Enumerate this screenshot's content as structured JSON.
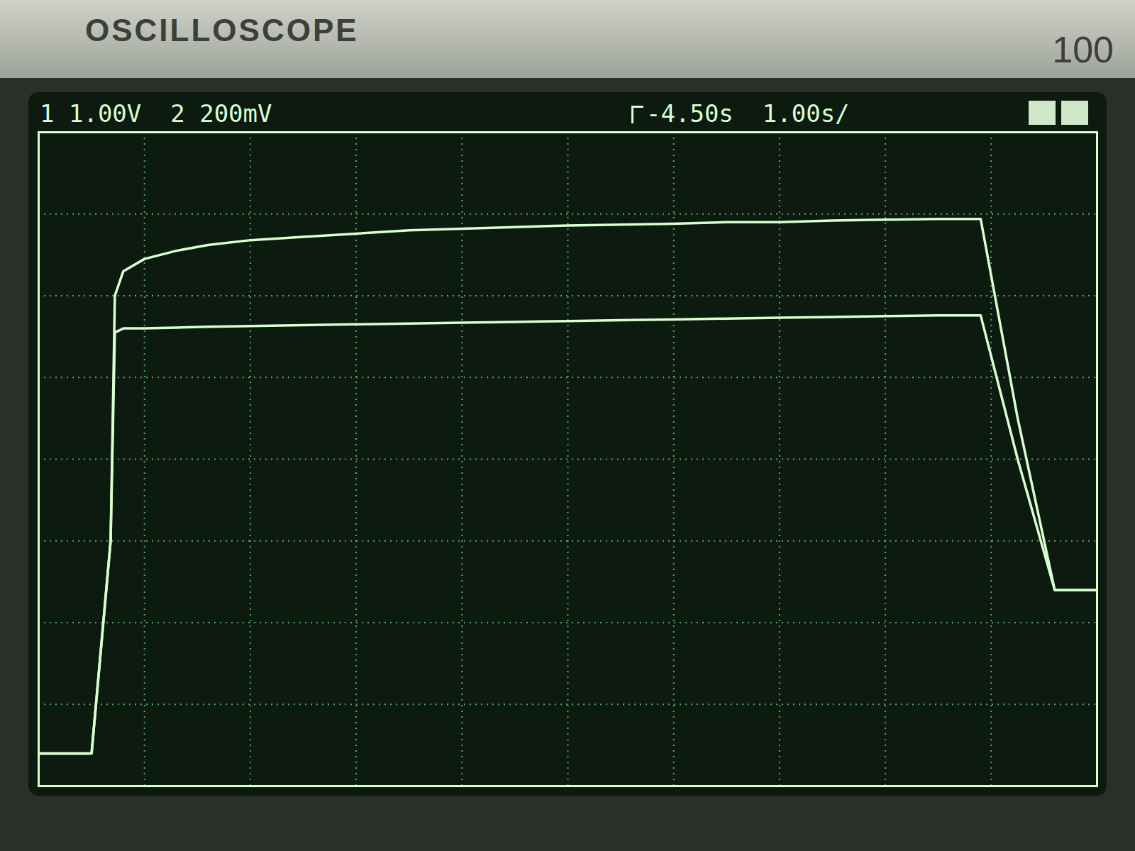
{
  "chart_data": {
    "type": "line",
    "annotations": [
      "OSCILLOSCOPE",
      "100",
      "-4.50s",
      "1.00s/"
    ],
    "x": [
      0,
      0.5,
      0.68,
      0.72,
      0.8,
      1.0,
      1.3,
      1.6,
      2.0,
      2.5,
      3.0,
      3.5,
      4.0,
      4.5,
      5.0,
      5.5,
      6.0,
      6.5,
      7.0,
      7.5,
      8.0,
      8.5,
      8.9,
      9.25,
      9.6,
      10
    ],
    "series": [
      {
        "name": "1",
        "label": "1.00V",
        "color": "#d8ffd0",
        "values": [
          -3.6,
          -3.6,
          -1.0,
          2.0,
          2.3,
          2.45,
          2.55,
          2.62,
          2.68,
          2.72,
          2.76,
          2.8,
          2.82,
          2.84,
          2.86,
          2.87,
          2.88,
          2.9,
          2.9,
          2.92,
          2.93,
          2.94,
          2.94,
          0.5,
          -1.6,
          -1.6
        ]
      },
      {
        "name": "2",
        "label": "200mV",
        "color": "#d8ffd0",
        "values": [
          -3.6,
          -3.6,
          -1.0,
          1.55,
          1.6,
          1.6,
          1.61,
          1.62,
          1.63,
          1.64,
          1.65,
          1.66,
          1.67,
          1.68,
          1.69,
          1.7,
          1.71,
          1.72,
          1.73,
          1.74,
          1.75,
          1.76,
          1.76,
          0.0,
          -1.6,
          -1.6
        ]
      }
    ],
    "xlim": [
      0,
      10
    ],
    "xticks": [
      0,
      1,
      2,
      3,
      4,
      5,
      6,
      7,
      8,
      9,
      10
    ],
    "ylim": [
      -4,
      4
    ],
    "yticks": [
      -4,
      -3,
      -2,
      -1,
      0,
      1,
      2,
      3,
      4
    ],
    "grid": true,
    "tick_labels": false
  }
}
